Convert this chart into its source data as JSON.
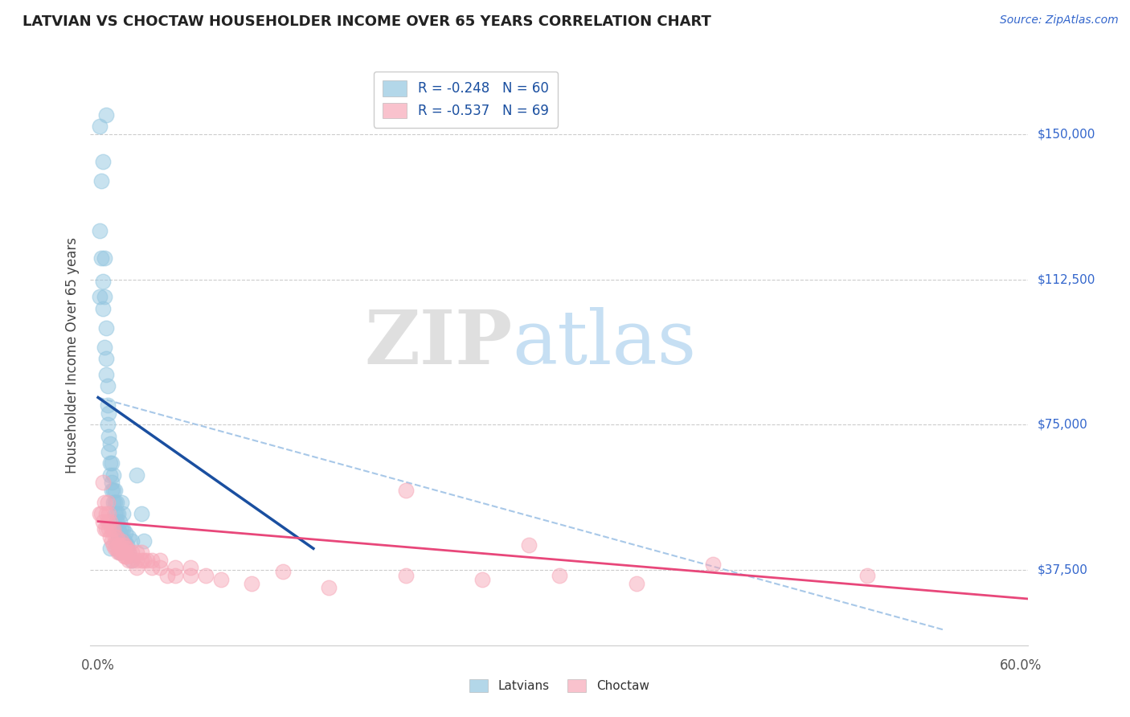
{
  "title": "LATVIAN VS CHOCTAW HOUSEHOLDER INCOME OVER 65 YEARS CORRELATION CHART",
  "source": "Source: ZipAtlas.com",
  "ylabel": "Householder Income Over 65 years",
  "yticks": [
    37500,
    75000,
    112500,
    150000
  ],
  "ytick_labels": [
    "$37,500",
    "$75,000",
    "$112,500",
    "$150,000"
  ],
  "xlim": [
    -0.005,
    0.605
  ],
  "ylim": [
    18000,
    168000
  ],
  "legend_latvian": "R = -0.248   N = 60",
  "legend_choctaw": "R = -0.537   N = 69",
  "latvian_color": "#93c6e0",
  "choctaw_color": "#f7a8b8",
  "trendline_latvian_color": "#1a4fa0",
  "trendline_choctaw_color": "#e8477a",
  "dashed_color": "#a8c8e8",
  "background_color": "#ffffff",
  "latvian_scatter": [
    [
      0.001,
      152000
    ],
    [
      0.002,
      138000
    ],
    [
      0.001,
      125000
    ],
    [
      0.003,
      143000
    ],
    [
      0.002,
      118000
    ],
    [
      0.003,
      112000
    ],
    [
      0.003,
      105000
    ],
    [
      0.004,
      118000
    ],
    [
      0.004,
      108000
    ],
    [
      0.005,
      100000
    ],
    [
      0.004,
      95000
    ],
    [
      0.005,
      92000
    ],
    [
      0.005,
      88000
    ],
    [
      0.006,
      85000
    ],
    [
      0.006,
      80000
    ],
    [
      0.007,
      78000
    ],
    [
      0.006,
      75000
    ],
    [
      0.007,
      72000
    ],
    [
      0.007,
      68000
    ],
    [
      0.008,
      70000
    ],
    [
      0.008,
      65000
    ],
    [
      0.008,
      62000
    ],
    [
      0.009,
      65000
    ],
    [
      0.009,
      60000
    ],
    [
      0.009,
      58000
    ],
    [
      0.01,
      62000
    ],
    [
      0.01,
      58000
    ],
    [
      0.01,
      55000
    ],
    [
      0.011,
      58000
    ],
    [
      0.011,
      55000
    ],
    [
      0.011,
      52000
    ],
    [
      0.012,
      55000
    ],
    [
      0.012,
      52000
    ],
    [
      0.012,
      50000
    ],
    [
      0.013,
      52000
    ],
    [
      0.013,
      48000
    ],
    [
      0.013,
      46000
    ],
    [
      0.014,
      50000
    ],
    [
      0.014,
      47000
    ],
    [
      0.015,
      48000
    ],
    [
      0.015,
      45000
    ],
    [
      0.016,
      48000
    ],
    [
      0.016,
      45000
    ],
    [
      0.017,
      45000
    ],
    [
      0.018,
      47000
    ],
    [
      0.018,
      44000
    ],
    [
      0.019,
      44000
    ],
    [
      0.02,
      46000
    ],
    [
      0.02,
      42000
    ],
    [
      0.022,
      45000
    ],
    [
      0.025,
      62000
    ],
    [
      0.028,
      52000
    ],
    [
      0.005,
      155000
    ],
    [
      0.001,
      108000
    ],
    [
      0.015,
      55000
    ],
    [
      0.016,
      52000
    ],
    [
      0.022,
      40000
    ],
    [
      0.03,
      45000
    ],
    [
      0.008,
      43000
    ],
    [
      0.014,
      42000
    ]
  ],
  "choctaw_scatter": [
    [
      0.001,
      52000
    ],
    [
      0.002,
      52000
    ],
    [
      0.003,
      60000
    ],
    [
      0.004,
      55000
    ],
    [
      0.003,
      50000
    ],
    [
      0.005,
      52000
    ],
    [
      0.004,
      48000
    ],
    [
      0.006,
      55000
    ],
    [
      0.005,
      48000
    ],
    [
      0.006,
      50000
    ],
    [
      0.007,
      52000
    ],
    [
      0.007,
      48000
    ],
    [
      0.008,
      50000
    ],
    [
      0.008,
      46000
    ],
    [
      0.009,
      48000
    ],
    [
      0.009,
      45000
    ],
    [
      0.01,
      48000
    ],
    [
      0.01,
      44000
    ],
    [
      0.011,
      46000
    ],
    [
      0.011,
      43000
    ],
    [
      0.012,
      46000
    ],
    [
      0.012,
      43000
    ],
    [
      0.013,
      44000
    ],
    [
      0.013,
      42000
    ],
    [
      0.014,
      44000
    ],
    [
      0.014,
      42000
    ],
    [
      0.015,
      45000
    ],
    [
      0.015,
      42000
    ],
    [
      0.016,
      44000
    ],
    [
      0.016,
      42000
    ],
    [
      0.017,
      44000
    ],
    [
      0.017,
      41000
    ],
    [
      0.018,
      43000
    ],
    [
      0.018,
      41000
    ],
    [
      0.019,
      43000
    ],
    [
      0.019,
      41000
    ],
    [
      0.02,
      42000
    ],
    [
      0.02,
      40000
    ],
    [
      0.022,
      42000
    ],
    [
      0.022,
      40000
    ],
    [
      0.025,
      42000
    ],
    [
      0.025,
      40000
    ],
    [
      0.025,
      38000
    ],
    [
      0.028,
      42000
    ],
    [
      0.028,
      40000
    ],
    [
      0.03,
      40000
    ],
    [
      0.032,
      40000
    ],
    [
      0.035,
      40000
    ],
    [
      0.035,
      38000
    ],
    [
      0.04,
      40000
    ],
    [
      0.04,
      38000
    ],
    [
      0.045,
      36000
    ],
    [
      0.05,
      38000
    ],
    [
      0.05,
      36000
    ],
    [
      0.06,
      38000
    ],
    [
      0.06,
      36000
    ],
    [
      0.07,
      36000
    ],
    [
      0.08,
      35000
    ],
    [
      0.1,
      34000
    ],
    [
      0.12,
      37000
    ],
    [
      0.15,
      33000
    ],
    [
      0.2,
      36000
    ],
    [
      0.25,
      35000
    ],
    [
      0.3,
      36000
    ],
    [
      0.35,
      34000
    ],
    [
      0.2,
      58000
    ],
    [
      0.28,
      44000
    ],
    [
      0.4,
      39000
    ],
    [
      0.5,
      36000
    ]
  ],
  "latvian_trend_x": [
    0.0,
    0.14
  ],
  "latvian_trend_y": [
    82000,
    43000
  ],
  "choctaw_trend_x": [
    0.0,
    0.605
  ],
  "choctaw_trend_y": [
    50000,
    30000
  ],
  "dashed_trend_x": [
    0.0,
    0.55
  ],
  "dashed_trend_y": [
    82000,
    22000
  ]
}
